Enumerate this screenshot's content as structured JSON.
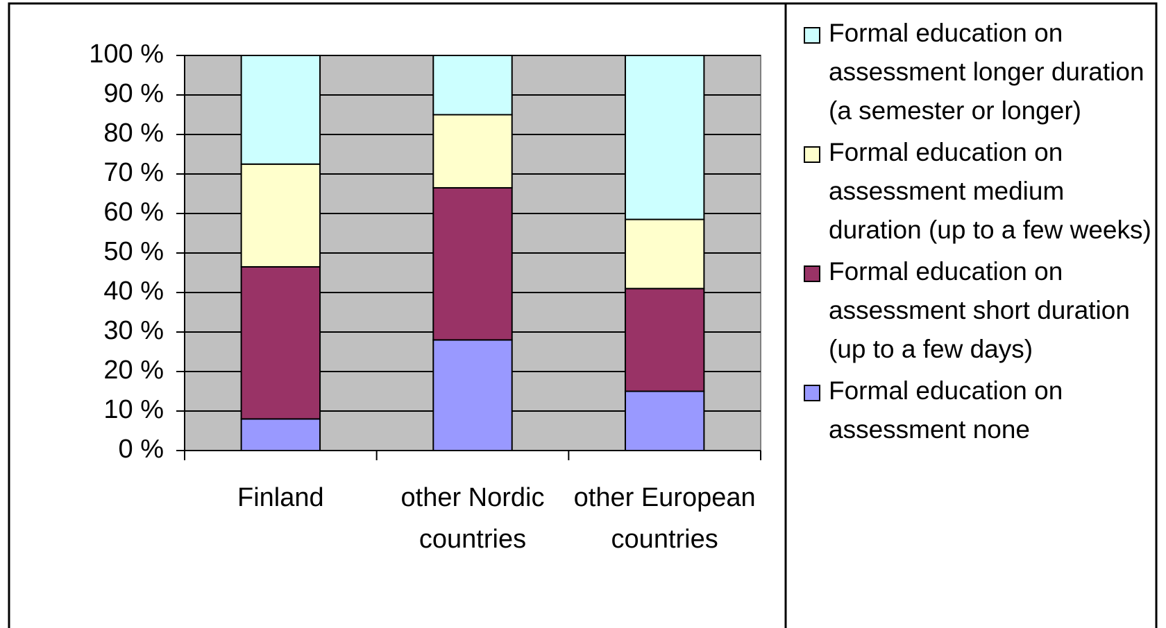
{
  "chart_data": {
    "type": "stacked_bar",
    "categories": [
      "Finland",
      "other Nordic countries",
      "other European countries"
    ],
    "series": [
      {
        "name": "Formal education on assessment none",
        "color": "#9999ff",
        "values": [
          8,
          28,
          15
        ]
      },
      {
        "name": "Formal education on assessment short duration (up to a few days)",
        "color": "#993366",
        "values": [
          38.5,
          38.5,
          26
        ]
      },
      {
        "name": "Formal education on assessment medium duration (up to a few weeks)",
        "color": "#ffffcc",
        "values": [
          26,
          18.5,
          17.5
        ]
      },
      {
        "name": "Formal education on assessment longer duration (a semester or longer)",
        "color": "#ccffff",
        "values": [
          27.5,
          15,
          41.5
        ]
      }
    ],
    "ylim": [
      0,
      100
    ],
    "yticks": [
      {
        "value": 0,
        "label": "0 %"
      },
      {
        "value": 10,
        "label": "10 %"
      },
      {
        "value": 20,
        "label": "20 %"
      },
      {
        "value": 30,
        "label": "30 %"
      },
      {
        "value": 40,
        "label": "40 %"
      },
      {
        "value": 50,
        "label": "50 %"
      },
      {
        "value": 60,
        "label": "60 %"
      },
      {
        "value": 70,
        "label": "70 %"
      },
      {
        "value": 80,
        "label": "80 %"
      },
      {
        "value": 90,
        "label": "90 %"
      },
      {
        "value": 100,
        "label": "100 %"
      }
    ],
    "grid": true,
    "plot_background": "#c0c0c0",
    "legend": "right"
  }
}
